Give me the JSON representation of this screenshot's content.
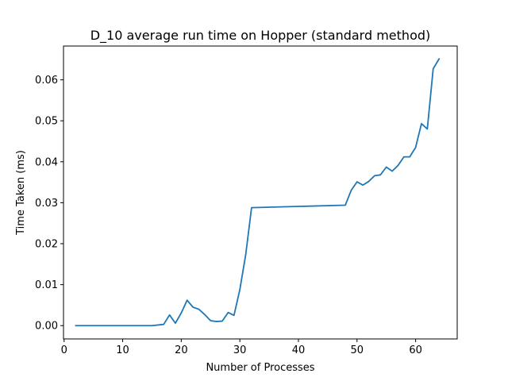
{
  "chart_data": {
    "type": "line",
    "title": "D_10 average run time on Hopper (standard method)",
    "xlabel": "Number of Processes",
    "ylabel": "Time Taken (ms)",
    "xlim": [
      -0.1,
      67.1
    ],
    "ylim": [
      -0.00325,
      0.06825
    ],
    "xticks": [
      0,
      10,
      20,
      30,
      40,
      50,
      60
    ],
    "xtick_labels": [
      "0",
      "10",
      "20",
      "30",
      "40",
      "50",
      "60"
    ],
    "yticks": [
      0.0,
      0.01,
      0.02,
      0.03,
      0.04,
      0.05,
      0.06
    ],
    "ytick_labels": [
      "0.00",
      "0.01",
      "0.02",
      "0.03",
      "0.04",
      "0.05",
      "0.06"
    ],
    "grid": false,
    "legend": "none",
    "series": [
      {
        "color": "#1f77b4",
        "x": [
          2,
          15,
          17,
          18,
          19,
          20,
          21,
          22,
          23,
          24,
          25,
          26,
          27,
          28,
          29,
          30,
          31,
          32,
          48,
          49,
          50,
          51,
          52,
          53,
          54,
          55,
          56,
          57,
          58,
          59,
          60,
          61,
          62,
          63,
          64
        ],
        "y": [
          0.0,
          0.0,
          0.0003,
          0.0026,
          0.0006,
          0.0031,
          0.0062,
          0.0045,
          0.004,
          0.0027,
          0.0012,
          0.001,
          0.0011,
          0.0032,
          0.0025,
          0.0088,
          0.0173,
          0.0288,
          0.0294,
          0.033,
          0.0351,
          0.0343,
          0.0352,
          0.0366,
          0.0368,
          0.0387,
          0.0377,
          0.0391,
          0.0412,
          0.0412,
          0.0435,
          0.0493,
          0.048,
          0.0627,
          0.0651
        ]
      }
    ]
  }
}
